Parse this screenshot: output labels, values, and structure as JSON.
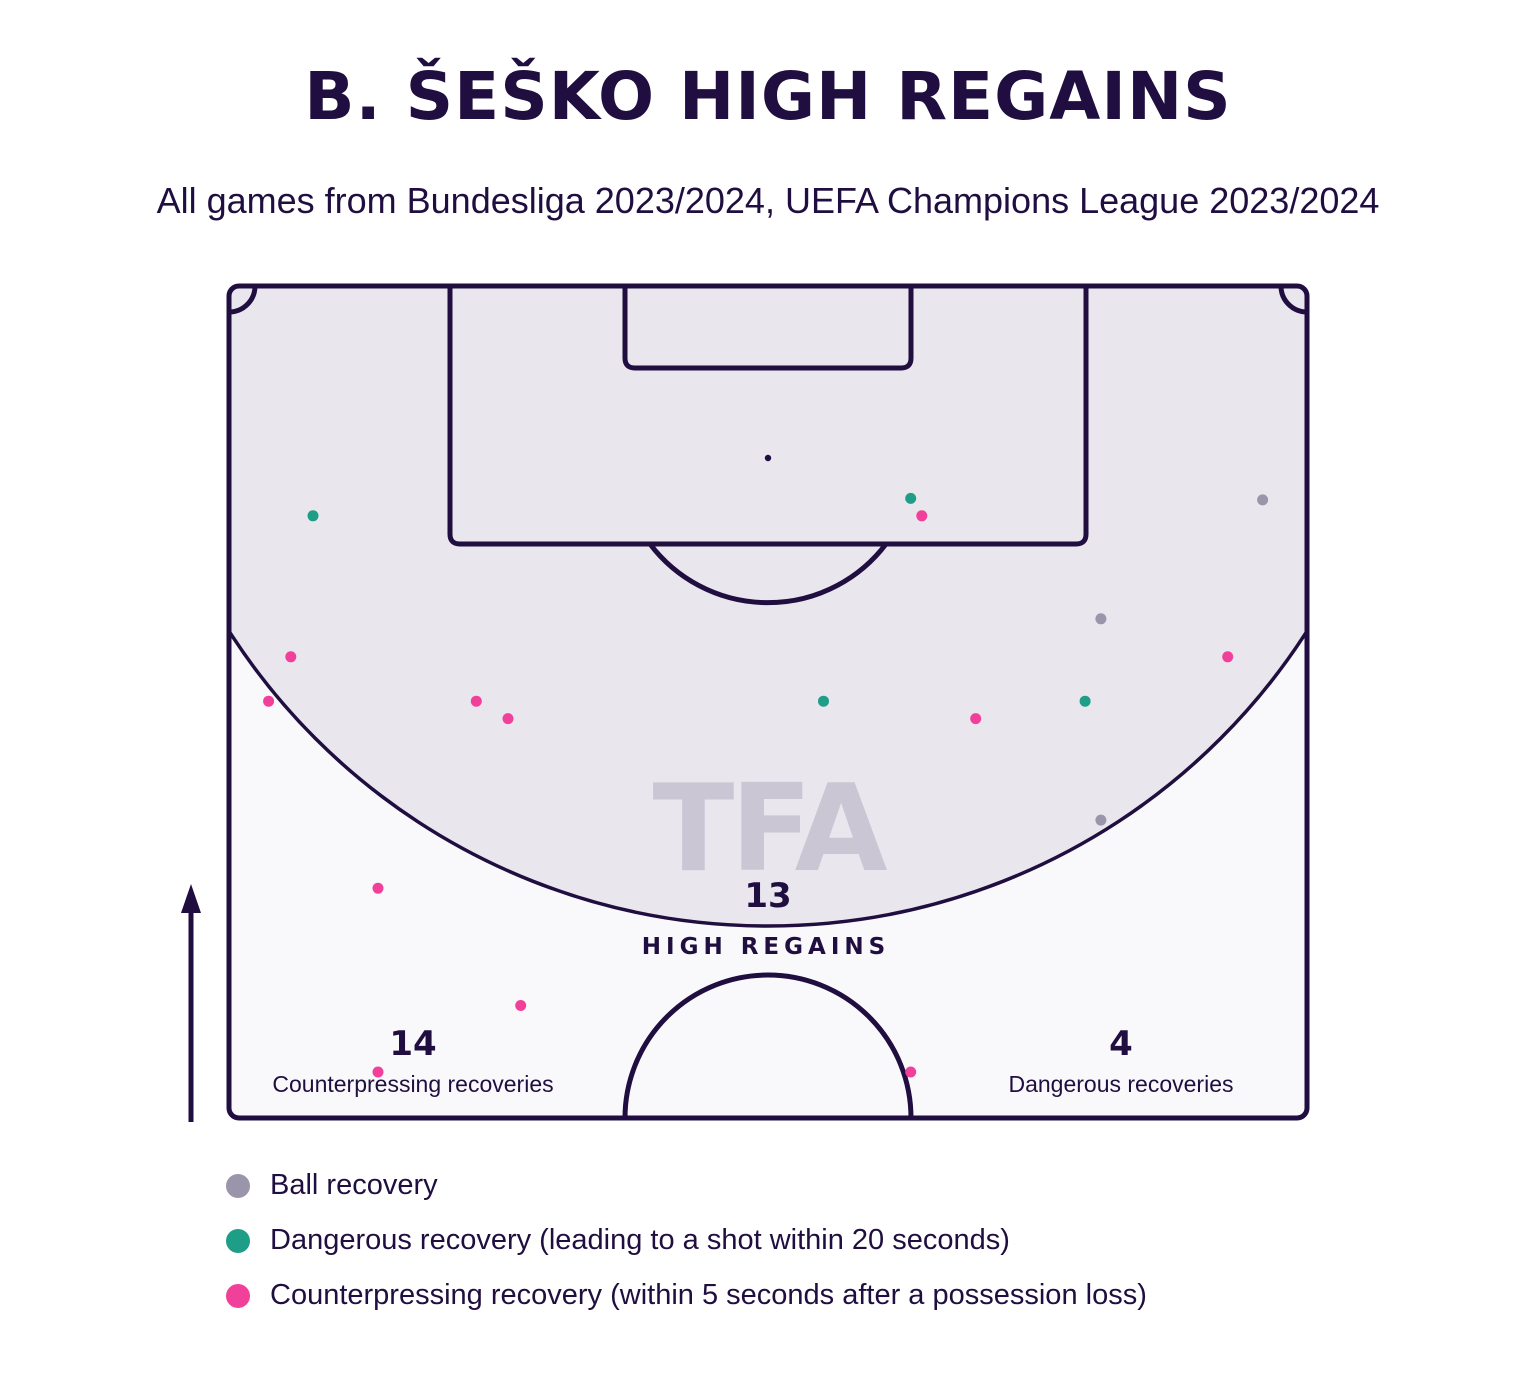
{
  "header": {
    "title": "B. ŠEŠKO HIGH REGAINS",
    "subtitle": "All games from Bundesliga 2023/2024, UEFA Champions League 2023/2024"
  },
  "watermark": "TFA",
  "stats": {
    "high_regains": {
      "value": "13",
      "label": "HIGH REGAINS"
    },
    "counterpressing": {
      "value": "14",
      "label": "Counterpressing recoveries"
    },
    "dangerous": {
      "value": "4",
      "label": "Dangerous recoveries"
    }
  },
  "colors": {
    "ink": "#1f0e3f",
    "zone_fill": "#e9e6ee",
    "pitch_fill": "#f9f9fb",
    "ball": "#9b95ab",
    "dangerous": "#1e9d87",
    "counterpressing": "#f0409a",
    "watermark": "#cbc6d4"
  },
  "legend": [
    {
      "key": "ball",
      "label": "Ball recovery",
      "color": "#9b95ab"
    },
    {
      "key": "dangerous",
      "label": "Dangerous recovery (leading to a shot within 20 seconds)",
      "color": "#1e9d87"
    },
    {
      "key": "counterpressing",
      "label": "Counterpressing recovery (within 5 seconds after a possession loss)",
      "color": "#f0409a"
    }
  ],
  "chart_data": {
    "type": "scatter",
    "title": "B. ŠEŠKO HIGH REGAINS",
    "pitch": "half-pitch, attacking upward",
    "xlim": [
      0,
      68
    ],
    "ylim": [
      0,
      52.5
    ],
    "y_axis_note": "meters from halfway line toward opponent goal",
    "series": [
      {
        "name": "Ball recovery",
        "key": "ball",
        "points": [
          [
            65.2,
            39.0
          ],
          [
            55.0,
            31.5
          ],
          [
            55.0,
            18.8
          ]
        ]
      },
      {
        "name": "Dangerous recovery (leading to a shot within 20 seconds)",
        "key": "dangerous",
        "points": [
          [
            5.3,
            38.0
          ],
          [
            43.0,
            39.1
          ],
          [
            37.5,
            26.3
          ],
          [
            54.0,
            26.3
          ]
        ]
      },
      {
        "name": "Counterpressing recovery (within 5 seconds after a possession loss)",
        "key": "counterpressing",
        "points": [
          [
            43.7,
            38.0
          ],
          [
            3.9,
            29.1
          ],
          [
            2.5,
            26.3
          ],
          [
            15.6,
            26.3
          ],
          [
            17.6,
            25.2
          ],
          [
            47.1,
            25.2
          ],
          [
            63.0,
            29.1
          ],
          [
            9.4,
            14.5
          ],
          [
            18.4,
            7.1
          ],
          [
            9.4,
            2.9
          ],
          [
            43.0,
            2.9
          ]
        ]
      }
    ]
  }
}
